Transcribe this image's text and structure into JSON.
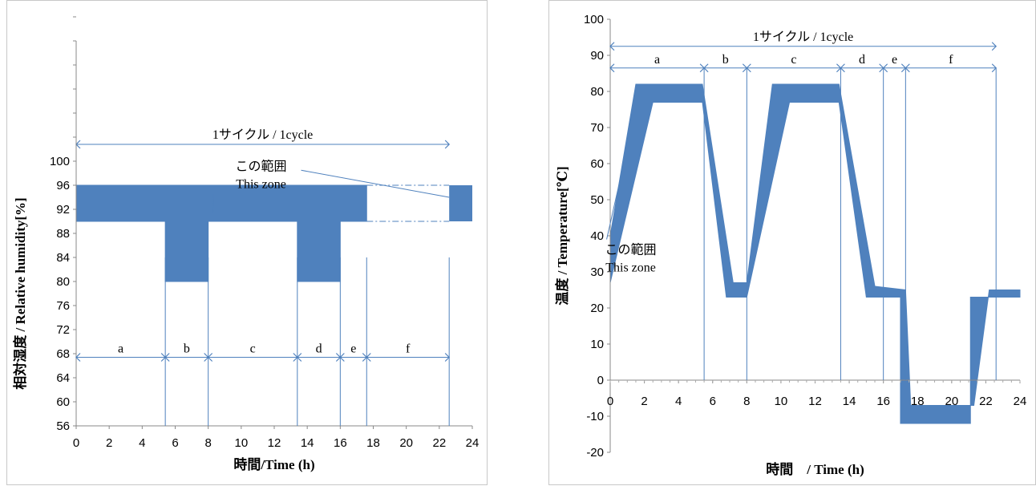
{
  "chart_data": [
    {
      "type": "area",
      "xlabel": "時間/Time (h)",
      "ylabel": "相対湿度 / Relative humidity[%]",
      "xlim": [
        0,
        24
      ],
      "ylim": [
        56,
        100
      ],
      "xticks": [
        "0",
        "2",
        "4",
        "6",
        "8",
        "10",
        "12",
        "14",
        "16",
        "18",
        "20",
        "22",
        "24"
      ],
      "yticks": [
        "56",
        "60",
        "64",
        "68",
        "72",
        "76",
        "80",
        "84",
        "88",
        "92",
        "96",
        "100"
      ],
      "zone": {
        "upper": [
          [
            0,
            96
          ],
          [
            17.6,
            96
          ]
        ],
        "lower": [
          [
            0,
            90
          ],
          [
            5.4,
            90
          ],
          [
            5.4,
            80
          ],
          [
            8,
            80
          ],
          [
            8,
            90
          ],
          [
            13.4,
            90
          ],
          [
            13.4,
            80
          ],
          [
            16,
            80
          ],
          [
            16,
            90
          ],
          [
            17.6,
            90
          ]
        ]
      },
      "zone_repeat": {
        "x": [
          22.6,
          24
        ],
        "y": [
          90,
          96
        ]
      },
      "cycle_label": "1サイクル / 1cycle",
      "cycle_span": [
        0,
        22.6
      ],
      "cycle_arrow_y": 102.8,
      "segments_arrow_y": 67.4,
      "segments": [
        {
          "label": "a",
          "start": 0,
          "end": 5.4
        },
        {
          "label": "b",
          "start": 5.4,
          "end": 8
        },
        {
          "label": "c",
          "start": 8,
          "end": 13.4
        },
        {
          "label": "d",
          "start": 13.4,
          "end": 16
        },
        {
          "label": "e",
          "start": 16,
          "end": 17.6
        },
        {
          "label": "f",
          "start": 17.6,
          "end": 22.6
        }
      ],
      "annotation": {
        "line1": "この範囲",
        "line2": "This zone",
        "pos": [
          11.2,
          98.5
        ]
      },
      "grid": false,
      "zone_color": "#4f81bd"
    },
    {
      "type": "area",
      "xlabel": "時間　/ Time (h)",
      "ylabel": "温度 / Temperature[℃]",
      "xlim": [
        0,
        24
      ],
      "ylim": [
        -20,
        100
      ],
      "xticks": [
        "0",
        "2",
        "4",
        "6",
        "8",
        "10",
        "12",
        "14",
        "16",
        "18",
        "20",
        "22",
        "24"
      ],
      "yticks": [
        "-20",
        "-10",
        "0",
        "10",
        "20",
        "30",
        "40",
        "50",
        "60",
        "70",
        "80",
        "90",
        "100"
      ],
      "zone": {
        "upper": [
          [
            0,
            40
          ],
          [
            1.5,
            82
          ],
          [
            5.4,
            82
          ],
          [
            7.2,
            27
          ],
          [
            8,
            27
          ],
          [
            9.5,
            82
          ],
          [
            13.4,
            82
          ],
          [
            15.5,
            26
          ],
          [
            17.3,
            25
          ],
          [
            17.6,
            -7
          ],
          [
            21.3,
            -7
          ],
          [
            22.2,
            25
          ],
          [
            24,
            25
          ]
        ],
        "lower": [
          [
            0,
            27
          ],
          [
            2.5,
            77
          ],
          [
            5.4,
            77
          ],
          [
            6.8,
            23
          ],
          [
            8,
            23
          ],
          [
            10.5,
            77
          ],
          [
            13.4,
            77
          ],
          [
            15,
            23
          ],
          [
            17,
            23
          ],
          [
            17,
            -12
          ],
          [
            21.1,
            -12
          ],
          [
            21.1,
            23
          ],
          [
            24,
            23
          ]
        ]
      },
      "cycle_label": "1サイクル / 1cycle",
      "cycle_span": [
        0,
        22.6
      ],
      "cycle_arrow_y": 92.5,
      "segments_arrow_y": 86.5,
      "segments": [
        {
          "label": "a",
          "start": 0,
          "end": 5.5
        },
        {
          "label": "b",
          "start": 5.5,
          "end": 8
        },
        {
          "label": "c",
          "start": 8,
          "end": 13.5
        },
        {
          "label": "d",
          "start": 13.5,
          "end": 16
        },
        {
          "label": "e",
          "start": 16,
          "end": 17.3
        },
        {
          "label": "f",
          "start": 17.3,
          "end": 22.6
        }
      ],
      "annotation": {
        "line1": "この範囲",
        "line2": "This zone",
        "pos": [
          1.2,
          35
        ]
      },
      "grid": false,
      "zone_color": "#4f81bd"
    }
  ]
}
